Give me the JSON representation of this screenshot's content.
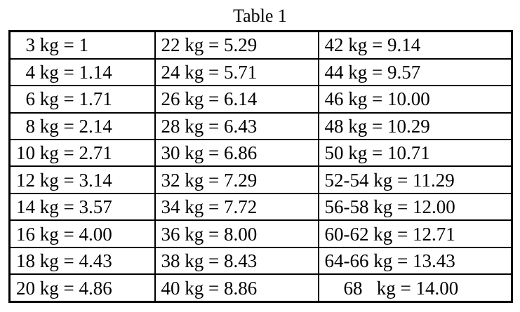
{
  "table": {
    "caption": "Table 1",
    "rows": [
      [
        "  3 kg = 1",
        "22 kg = 5.29",
        "42 kg = 9.14"
      ],
      [
        "  4 kg = 1.14",
        "24 kg = 5.71",
        "44 kg = 9.57"
      ],
      [
        "  6 kg = 1.71",
        "26 kg = 6.14",
        "46 kg = 10.00"
      ],
      [
        "  8 kg = 2.14",
        "28 kg = 6.43",
        "48 kg = 10.29"
      ],
      [
        "10 kg = 2.71",
        "30 kg = 6.86",
        "50 kg = 10.71"
      ],
      [
        "12 kg = 3.14",
        "32 kg = 7.29",
        "52-54 kg = 11.29"
      ],
      [
        "14 kg = 3.57",
        "34 kg = 7.72",
        "56-58 kg = 12.00"
      ],
      [
        "16 kg = 4.00",
        "36 kg = 8.00",
        "60-62 kg = 12.71"
      ],
      [
        "18 kg = 4.43",
        "38 kg = 8.43",
        "64-66 kg = 13.43"
      ],
      [
        "20 kg = 4.86",
        "40 kg = 8.86",
        "    68   kg = 14.00"
      ]
    ]
  }
}
